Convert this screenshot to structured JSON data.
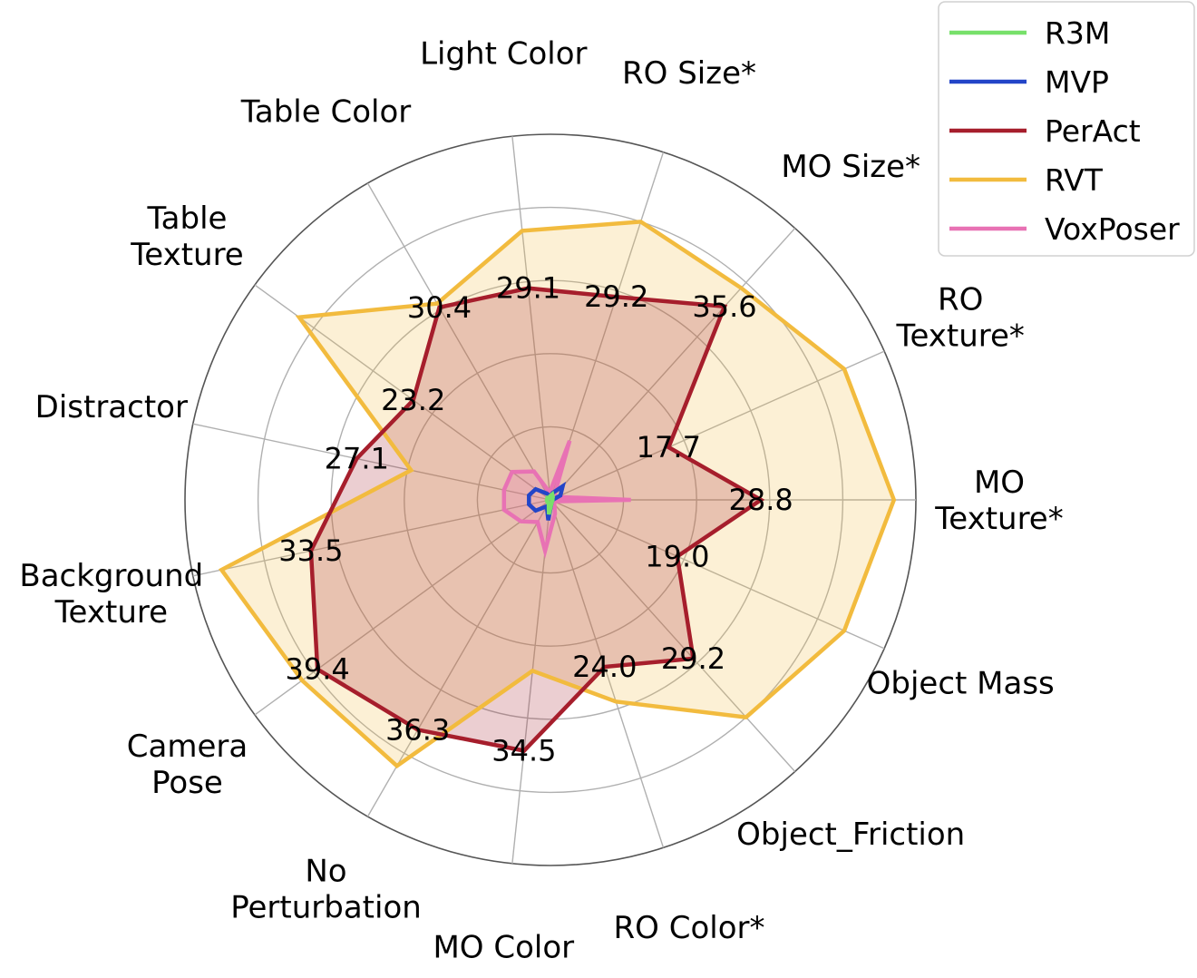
{
  "chart_data": {
    "type": "radar",
    "rmax": 50,
    "grid": true,
    "legend_position": "top-right",
    "categories": [
      "MO\nTexture*",
      "RO\nTexture*",
      "MO Size*",
      "RO Size*",
      "Light Color",
      "Table Color",
      "Table\nTexture",
      "Distractor",
      "Background\nTexture",
      "Camera\nPose",
      "No\nPerturbation",
      "MO Color",
      "RO Color*",
      "Object_Friction",
      "Object Mass"
    ],
    "series": [
      {
        "name": "R3M",
        "color": "#77e06a",
        "values": [
          0.3,
          0.3,
          0.5,
          0.8,
          0.5,
          0.3,
          0.5,
          0.5,
          0.5,
          0.5,
          0.5,
          2.0,
          0.5,
          0.3,
          0.3
        ]
      },
      {
        "name": "MVP",
        "color": "#2345c8",
        "values": [
          0.3,
          1.5,
          2.5,
          1.0,
          0.5,
          1.0,
          2.5,
          3.0,
          3.0,
          2.5,
          1.0,
          2.8,
          0.5,
          0.3,
          0.3
        ]
      },
      {
        "name": "PerAct",
        "color": "#a61e2c",
        "values": [
          28.8,
          17.7,
          35.6,
          29.2,
          29.1,
          30.4,
          23.2,
          27.1,
          33.5,
          39.4,
          36.3,
          34.5,
          24.0,
          29.2,
          19.0
        ],
        "point_labels": [
          "28.8",
          "17.7",
          "35.6",
          "29.2",
          "29.1",
          "30.4",
          "23.2",
          "27.1",
          "33.5",
          "39.4",
          "36.3",
          "34.5",
          "24.0",
          "29.2",
          "19.0"
        ]
      },
      {
        "name": "RVT",
        "color": "#f2bb3e",
        "values": [
          47.0,
          44.0,
          39.0,
          40.0,
          37.0,
          31.0,
          42.5,
          19.5,
          46.0,
          42.0,
          42.0,
          23.5,
          29.0,
          40.0,
          44.0
        ]
      },
      {
        "name": "VoxPoser",
        "color": "#e872b4",
        "values": [
          11.0,
          1.0,
          0.8,
          8.5,
          1.0,
          4.5,
          6.5,
          6.5,
          6.5,
          5.0,
          3.5,
          7.0,
          2.0,
          0.8,
          0.5
        ]
      }
    ]
  }
}
